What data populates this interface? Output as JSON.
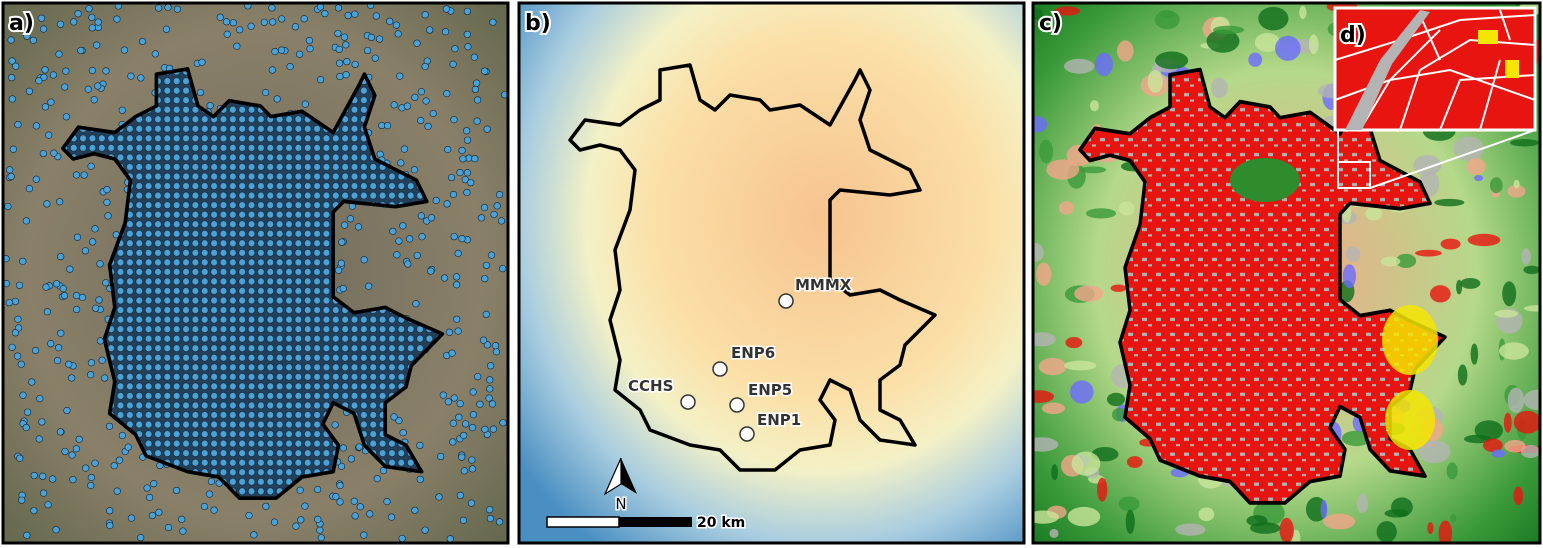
{
  "panel_a": {
    "label": "a)"
  },
  "panel_b": {
    "label": "b)",
    "stations": [
      {
        "name": "MMMX"
      },
      {
        "name": "ENP6"
      },
      {
        "name": "CCHS"
      },
      {
        "name": "ENP5"
      },
      {
        "name": "ENP1"
      }
    ],
    "north_arrow": "N",
    "scale_bar": "20 km"
  },
  "panel_c": {
    "label": "c)"
  },
  "panel_d": {
    "label": "d)"
  }
}
